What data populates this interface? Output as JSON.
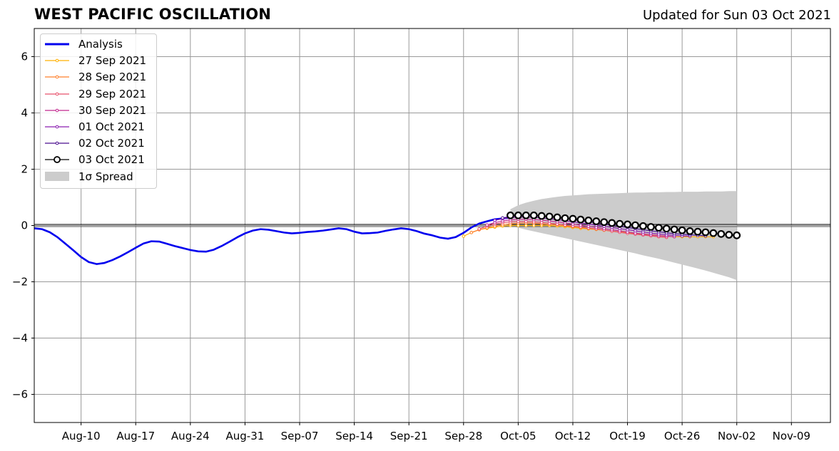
{
  "header": {
    "title": "WEST PACIFIC OSCILLATION",
    "updated": "Updated for Sun 03 Oct 2021"
  },
  "chart_data": {
    "type": "line",
    "title": "WEST PACIFIC OSCILLATION",
    "subtitle": "Updated for Sun 03 Oct 2021",
    "xlabel": "",
    "ylabel": "",
    "ylim": [
      -7,
      7
    ],
    "yticks": [
      -6,
      -4,
      -2,
      0,
      2,
      4,
      6
    ],
    "ytick_labels": [
      "−6",
      "−4",
      "−2",
      "0",
      "2",
      "4",
      "6"
    ],
    "xlim": [
      "2021-08-04",
      "2021-11-14"
    ],
    "xticks": [
      "2021-08-10",
      "2021-08-17",
      "2021-08-24",
      "2021-08-31",
      "2021-09-07",
      "2021-09-14",
      "2021-09-21",
      "2021-09-28",
      "2021-10-05",
      "2021-10-12",
      "2021-10-19",
      "2021-10-26",
      "2021-11-02",
      "2021-11-09"
    ],
    "xtick_labels": [
      "Aug-10",
      "Aug-17",
      "Aug-24",
      "Aug-31",
      "Sep-07",
      "Sep-14",
      "Sep-21",
      "Sep-28",
      "Oct-05",
      "Oct-12",
      "Oct-19",
      "Oct-26",
      "Nov-02",
      "Nov-09"
    ],
    "grid": true,
    "legend_position": "top-left",
    "zero_line": 0,
    "analysis": {
      "name": "Analysis",
      "color": "#0000ee",
      "start": "2021-08-04",
      "values": [
        -0.1,
        -0.13,
        -0.24,
        -0.42,
        -0.65,
        -0.88,
        -1.12,
        -1.3,
        -1.37,
        -1.33,
        -1.23,
        -1.1,
        -0.95,
        -0.79,
        -0.64,
        -0.56,
        -0.57,
        -0.65,
        -0.73,
        -0.8,
        -0.87,
        -0.92,
        -0.93,
        -0.86,
        -0.73,
        -0.58,
        -0.42,
        -0.28,
        -0.18,
        -0.13,
        -0.15,
        -0.2,
        -0.25,
        -0.28,
        -0.26,
        -0.23,
        -0.21,
        -0.18,
        -0.14,
        -0.1,
        -0.13,
        -0.22,
        -0.28,
        -0.27,
        -0.25,
        -0.19,
        -0.14,
        -0.1,
        -0.13,
        -0.2,
        -0.29,
        -0.35,
        -0.43,
        -0.47,
        -0.41,
        -0.26,
        -0.07,
        0.07,
        0.15,
        0.22,
        0.25,
        0.28
      ]
    },
    "forecasts": [
      {
        "name": "27 Sep 2021",
        "color": "#ffb000",
        "start": "2021-09-28",
        "values": [
          -0.38,
          -0.25,
          -0.15,
          -0.1,
          -0.06,
          -0.02,
          0.0,
          0.0,
          0.0,
          0.0,
          0.0,
          0.0,
          -0.02,
          -0.04,
          -0.07,
          -0.1,
          -0.12,
          -0.14,
          -0.17,
          -0.2,
          -0.23,
          -0.25,
          -0.28,
          -0.3,
          -0.33,
          -0.35,
          -0.38,
          -0.4,
          -0.4,
          -0.4,
          -0.4,
          -0.4,
          -0.4
        ]
      },
      {
        "name": "28 Sep 2021",
        "color": "#ff7f2a",
        "start": "2021-09-29",
        "values": [
          -0.25,
          -0.15,
          -0.08,
          -0.02,
          0.03,
          0.06,
          0.08,
          0.09,
          0.08,
          0.06,
          0.04,
          0.02,
          -0.01,
          -0.04,
          -0.07,
          -0.1,
          -0.13,
          -0.16,
          -0.2,
          -0.23,
          -0.26,
          -0.3,
          -0.33,
          -0.36,
          -0.4,
          -0.42
        ]
      },
      {
        "name": "29 Sep 2021",
        "color": "#e8506a",
        "start": "2021-09-30",
        "values": [
          -0.12,
          -0.02,
          0.05,
          0.1,
          0.13,
          0.14,
          0.14,
          0.13,
          0.11,
          0.08,
          0.05,
          0.02,
          -0.02,
          -0.05,
          -0.09,
          -0.12,
          -0.16,
          -0.2,
          -0.24,
          -0.28,
          -0.31,
          -0.34,
          -0.37,
          -0.4,
          -0.42
        ]
      },
      {
        "name": "30 Sep 2021",
        "color": "#c2288e",
        "start": "2021-10-01",
        "values": [
          0.02,
          0.1,
          0.16,
          0.2,
          0.22,
          0.22,
          0.21,
          0.19,
          0.16,
          0.13,
          0.09,
          0.05,
          0.01,
          -0.03,
          -0.07,
          -0.11,
          -0.15,
          -0.19,
          -0.23,
          -0.27,
          -0.3,
          -0.33,
          -0.36,
          -0.38,
          -0.4
        ]
      },
      {
        "name": "01 Oct 2021",
        "color": "#8a1fb0",
        "start": "2021-10-02",
        "values": [
          0.18,
          0.24,
          0.28,
          0.3,
          0.3,
          0.29,
          0.27,
          0.24,
          0.21,
          0.17,
          0.13,
          0.09,
          0.05,
          0.01,
          -0.03,
          -0.07,
          -0.11,
          -0.15,
          -0.19,
          -0.23,
          -0.27,
          -0.3,
          -0.33,
          -0.35,
          -0.37,
          -0.38
        ]
      },
      {
        "name": "02 Oct 2021",
        "color": "#4b0f8f",
        "start": "2021-10-03",
        "values": [
          0.27,
          0.32,
          0.35,
          0.36,
          0.35,
          0.33,
          0.31,
          0.28,
          0.25,
          0.21,
          0.17,
          0.13,
          0.09,
          0.05,
          0.01,
          -0.03,
          -0.07,
          -0.11,
          -0.15,
          -0.19,
          -0.22,
          -0.26,
          -0.29,
          -0.31,
          -0.33,
          -0.35,
          -0.37
        ]
      },
      {
        "name": "03 Oct 2021",
        "color": "#000000",
        "start": "2021-10-04",
        "values": [
          0.36,
          0.36,
          0.36,
          0.36,
          0.34,
          0.32,
          0.29,
          0.26,
          0.24,
          0.21,
          0.18,
          0.15,
          0.12,
          0.09,
          0.06,
          0.04,
          0.01,
          -0.02,
          -0.05,
          -0.08,
          -0.11,
          -0.14,
          -0.17,
          -0.2,
          -0.22,
          -0.24,
          -0.27,
          -0.3,
          -0.33,
          -0.35
        ]
      }
    ],
    "spread": {
      "name": "1σ Spread",
      "color": "#cccccc",
      "start": "2021-10-04",
      "upper": [
        0.58,
        0.72,
        0.81,
        0.88,
        0.94,
        0.98,
        1.02,
        1.05,
        1.07,
        1.09,
        1.11,
        1.12,
        1.13,
        1.14,
        1.15,
        1.16,
        1.17,
        1.17,
        1.18,
        1.18,
        1.19,
        1.19,
        1.2,
        1.2,
        1.2,
        1.21,
        1.21,
        1.21,
        1.22,
        1.22
      ],
      "lower": [
        0.0,
        -0.08,
        -0.15,
        -0.21,
        -0.27,
        -0.33,
        -0.39,
        -0.45,
        -0.51,
        -0.57,
        -0.63,
        -0.69,
        -0.75,
        -0.81,
        -0.87,
        -0.93,
        -0.99,
        -1.06,
        -1.12,
        -1.18,
        -1.25,
        -1.32,
        -1.39,
        -1.46,
        -1.53,
        -1.6,
        -1.68,
        -1.76,
        -1.84,
        -1.94
      ]
    }
  },
  "legend": {
    "items": [
      {
        "label": "Analysis",
        "color": "#0000ee",
        "kind": "thick-line"
      },
      {
        "label": "27 Sep 2021",
        "color": "#ffb000",
        "kind": "marker-line"
      },
      {
        "label": "28 Sep 2021",
        "color": "#ff7f2a",
        "kind": "marker-line"
      },
      {
        "label": "29 Sep 2021",
        "color": "#e8506a",
        "kind": "marker-line"
      },
      {
        "label": "30 Sep 2021",
        "color": "#c2288e",
        "kind": "marker-line"
      },
      {
        "label": "01 Oct 2021",
        "color": "#8a1fb0",
        "kind": "marker-line"
      },
      {
        "label": "02 Oct 2021",
        "color": "#4b0f8f",
        "kind": "marker-line"
      },
      {
        "label": "03 Oct 2021",
        "color": "#000000",
        "kind": "open-circle-line"
      },
      {
        "label": "1σ Spread",
        "color": "#cccccc",
        "kind": "patch"
      }
    ]
  }
}
